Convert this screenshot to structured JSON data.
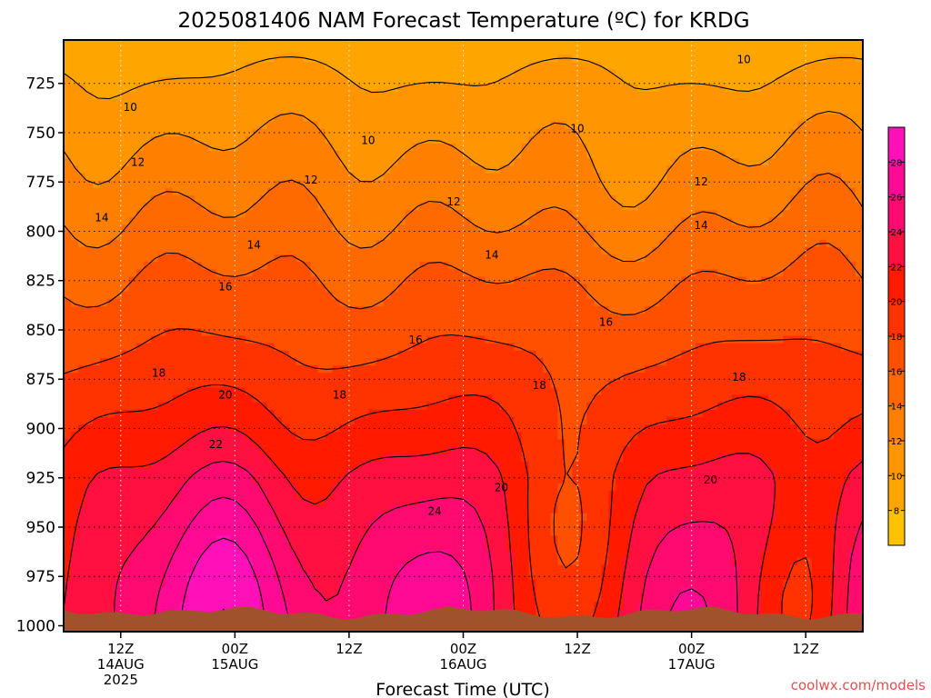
{
  "chart_data": {
    "type": "heatmap",
    "subtype": "filled-contour",
    "title": "2025081406 NAM Forecast Temperature (ºC) for KRDG",
    "xlabel": "Forecast Time (UTC)",
    "ylabel": "",
    "credit": "coolwx.com/models",
    "x_ticks": [
      {
        "lines": [
          "12Z",
          "14AUG",
          "2025"
        ],
        "hour": 6
      },
      {
        "lines": [
          "00Z",
          "15AUG"
        ],
        "hour": 18
      },
      {
        "lines": [
          "12Z"
        ],
        "hour": 30
      },
      {
        "lines": [
          "00Z",
          "16AUG"
        ],
        "hour": 42
      },
      {
        "lines": [
          "12Z"
        ],
        "hour": 54
      },
      {
        "lines": [
          "00Z",
          "17AUG"
        ],
        "hour": 66
      },
      {
        "lines": [
          "12Z"
        ],
        "hour": 78
      }
    ],
    "xlim": [
      0,
      84
    ],
    "y_ticks": [
      725,
      750,
      775,
      800,
      825,
      850,
      875,
      900,
      925,
      950,
      975,
      1000
    ],
    "ylim": [
      1003,
      703
    ],
    "pressure_levels": [
      1000,
      975,
      950,
      925,
      900,
      875,
      850,
      825,
      800,
      775,
      750,
      725,
      700
    ],
    "levels": [
      6,
      8,
      10,
      12,
      14,
      16,
      18,
      20,
      22,
      24,
      26,
      28,
      30
    ],
    "colorbar": {
      "labels": [
        8,
        10,
        12,
        14,
        16,
        18,
        20,
        22,
        24,
        26,
        28
      ],
      "colors": [
        "#ffc200",
        "#ffa500",
        "#ff9500",
        "#ff8000",
        "#ff6a00",
        "#ff5000",
        "#ff3300",
        "#ff1a00",
        "#ff1040",
        "#ff0a70",
        "#ff0a95",
        "#ff10b8"
      ]
    },
    "contour_labels": [
      {
        "text": "10",
        "hour": 7.0,
        "p": 737
      },
      {
        "text": "10",
        "hour": 32.0,
        "p": 754
      },
      {
        "text": "10",
        "hour": 54.0,
        "p": 748
      },
      {
        "text": "10",
        "hour": 71.5,
        "p": 713
      },
      {
        "text": "12",
        "hour": 7.8,
        "p": 765
      },
      {
        "text": "12",
        "hour": 26.0,
        "p": 774
      },
      {
        "text": "12",
        "hour": 41.0,
        "p": 785
      },
      {
        "text": "12",
        "hour": 67.0,
        "p": 775
      },
      {
        "text": "14",
        "hour": 4.0,
        "p": 793
      },
      {
        "text": "14",
        "hour": 20.0,
        "p": 807
      },
      {
        "text": "14",
        "hour": 45.0,
        "p": 812
      },
      {
        "text": "14",
        "hour": 67.0,
        "p": 797
      },
      {
        "text": "16",
        "hour": 17.0,
        "p": 828
      },
      {
        "text": "16",
        "hour": 37.0,
        "p": 855
      },
      {
        "text": "16",
        "hour": 57.0,
        "p": 846
      },
      {
        "text": "18",
        "hour": 10.0,
        "p": 872
      },
      {
        "text": "18",
        "hour": 29.0,
        "p": 883
      },
      {
        "text": "18",
        "hour": 50.0,
        "p": 878
      },
      {
        "text": "18",
        "hour": 71.0,
        "p": 874
      },
      {
        "text": "20",
        "hour": 17.0,
        "p": 883
      },
      {
        "text": "20",
        "hour": 46.0,
        "p": 930
      },
      {
        "text": "20",
        "hour": 68.0,
        "p": 926
      },
      {
        "text": "22",
        "hour": 16.0,
        "p": 908
      },
      {
        "text": "24",
        "hour": 39.0,
        "p": 942
      }
    ],
    "grid": true,
    "legend": "colorbar-right"
  }
}
